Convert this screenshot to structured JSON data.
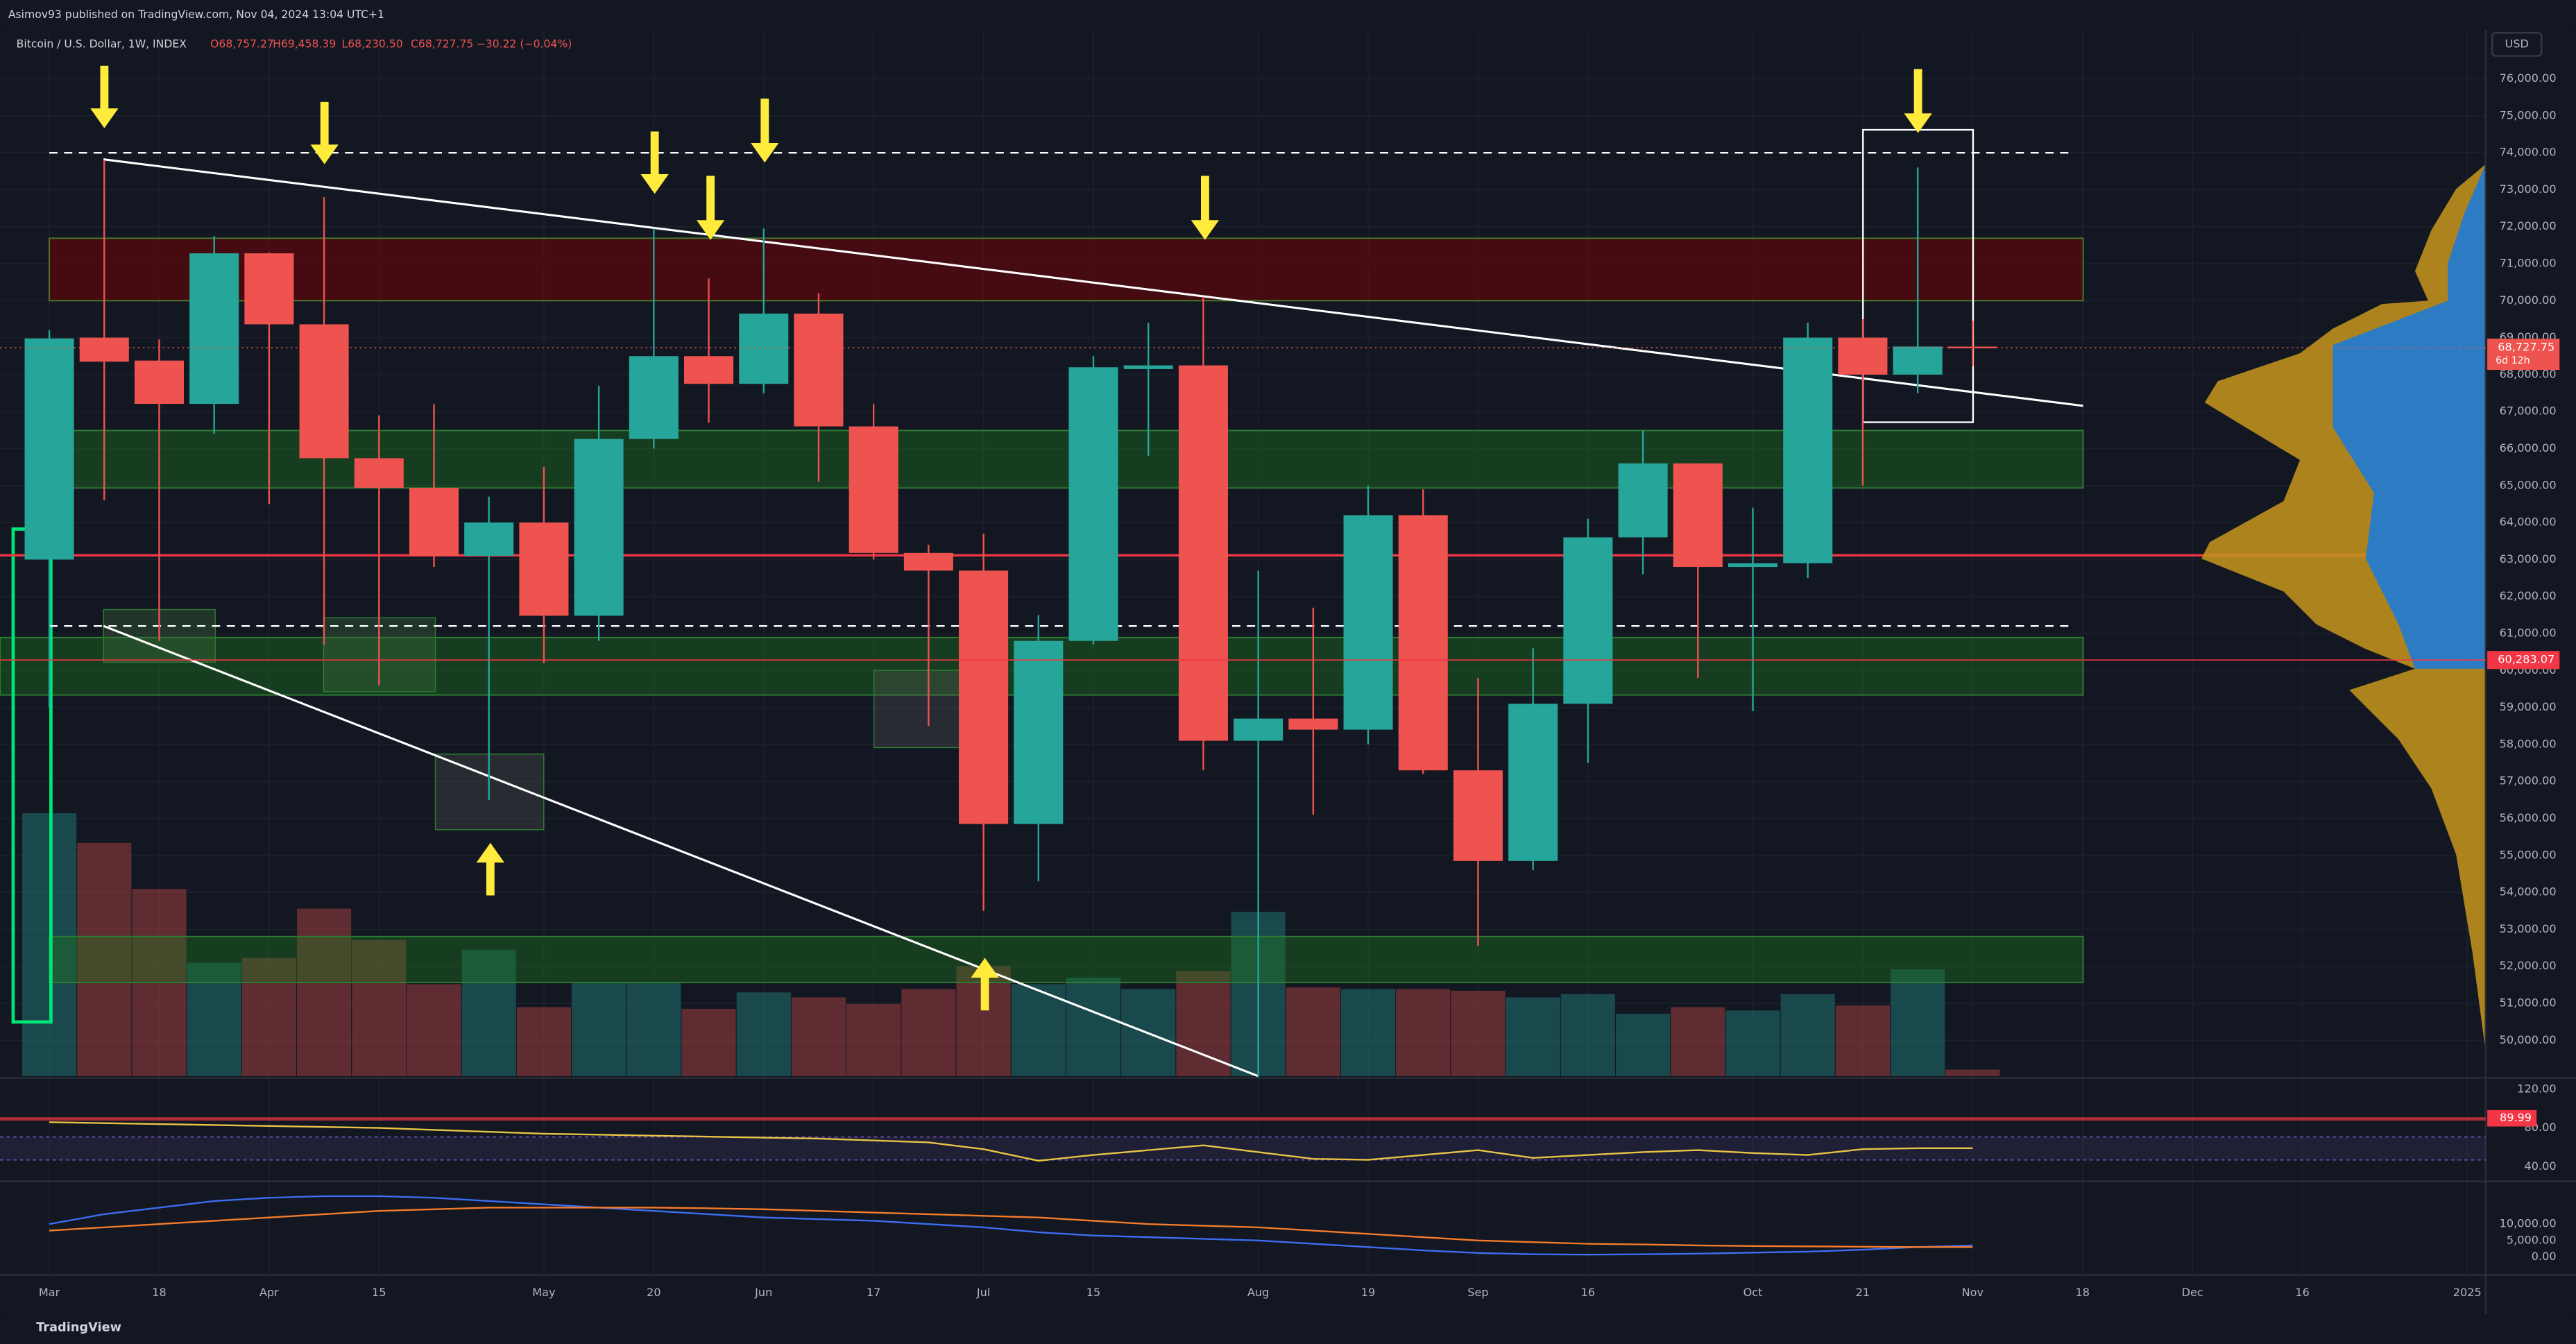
{
  "chart_data": {
    "type": "candlestick",
    "author_line": "Asimov93 published on TradingView.com, Nov 04, 2024 13:04 UTC+1",
    "symbol": "Bitcoin / U.S. Dollar, 1W, INDEX",
    "ohlc_text": [
      "O68,757.27",
      "H69,458.39",
      "L68,230.50",
      "C68,727.75"
    ],
    "change_text": "−30.22 (−0.04%)",
    "currency": "USD",
    "footer": "TradingView",
    "categories": [
      "Mar",
      null,
      "18",
      null,
      "Apr",
      null,
      "15",
      null,
      null,
      "May",
      null,
      "20",
      null,
      "Jun",
      null,
      "17",
      null,
      "Jul",
      null,
      "15",
      null,
      null,
      "Aug",
      null,
      "19",
      null,
      "Sep",
      null,
      "16",
      null,
      null,
      "Oct",
      null,
      "21",
      null,
      "Nov",
      null,
      "18",
      null,
      "Dec",
      null,
      "16",
      null,
      null,
      "2025"
    ],
    "open": [
      63000,
      69000,
      68380,
      67210,
      71280,
      69360,
      65740,
      64940,
      63100,
      64000,
      61480,
      66260,
      68500,
      67750,
      69650,
      66600,
      63180,
      62700,
      55850,
      60800,
      68150,
      68250,
      58100,
      58700,
      58400,
      64200,
      57300,
      54850,
      59100,
      63600,
      65600,
      62800,
      62900,
      69000,
      68000,
      68757.27,
      null,
      null,
      null,
      null,
      null,
      null,
      null,
      null,
      null
    ],
    "high": [
      69200,
      73800,
      68950,
      71750,
      71300,
      72800,
      66900,
      67200,
      64700,
      65500,
      67700,
      71950,
      70600,
      71950,
      70200,
      67200,
      63400,
      63700,
      61500,
      68500,
      69400,
      70100,
      62700,
      61700,
      65000,
      64900,
      59800,
      60600,
      64100,
      66500,
      65600,
      64400,
      69400,
      69500,
      73600,
      69458.39,
      null,
      null,
      null,
      null,
      null,
      null,
      null,
      null,
      null
    ],
    "low": [
      59000,
      64600,
      60800,
      66400,
      64500,
      60700,
      59600,
      62800,
      56500,
      60200,
      60800,
      66000,
      66700,
      67500,
      65100,
      63000,
      58500,
      53500,
      54300,
      60700,
      65800,
      57300,
      49000,
      56100,
      58000,
      57200,
      52550,
      54600,
      57500,
      62600,
      59800,
      58900,
      62500,
      65000,
      67500,
      68230.5,
      null,
      null,
      null,
      null,
      null,
      null,
      null,
      null,
      null
    ],
    "close": [
      68978,
      68350,
      67210,
      71280,
      69360,
      65740,
      64940,
      63100,
      64000,
      61480,
      66260,
      68500,
      67750,
      69650,
      66600,
      63180,
      62700,
      55850,
      60800,
      68200,
      68250,
      58100,
      58700,
      58400,
      64200,
      57300,
      54850,
      59100,
      63600,
      65600,
      62800,
      62900,
      69000,
      68000,
      68760,
      68727.75,
      null,
      null,
      null,
      null,
      null,
      null,
      null,
      null,
      null
    ],
    "volume": [
      160,
      142,
      114,
      69,
      72,
      102,
      83,
      56,
      77,
      42,
      57,
      57,
      41,
      51,
      48,
      44,
      53,
      67,
      56,
      60,
      53,
      64,
      100,
      54,
      53,
      53,
      52,
      48,
      50,
      38,
      42,
      40,
      50,
      43,
      65,
      4,
      null,
      null,
      null,
      null,
      null,
      null,
      null,
      null,
      null
    ],
    "up_color": "#26a69a",
    "down_color": "#ef5350",
    "ylim": [
      49030,
      77330
    ],
    "yticks": [
      {
        "value": 50000,
        "label": "50,000.00"
      },
      {
        "value": 51000,
        "label": "51,000.00"
      },
      {
        "value": 52000,
        "label": "52,000.00"
      },
      {
        "value": 53000,
        "label": "53,000.00"
      },
      {
        "value": 54000,
        "label": "54,000.00"
      },
      {
        "value": 55000,
        "label": "55,000.00"
      },
      {
        "value": 56000,
        "label": "56,000.00"
      },
      {
        "value": 57000,
        "label": "57,000.00"
      },
      {
        "value": 58000,
        "label": "58,000.00"
      },
      {
        "value": 59000,
        "label": "59,000.00"
      },
      {
        "value": 60000,
        "label": "60,000.00"
      },
      {
        "value": 61000,
        "label": "61,000.00"
      },
      {
        "value": 62000,
        "label": "62,000.00"
      },
      {
        "value": 63000,
        "label": "63,000.00"
      },
      {
        "value": 64000,
        "label": "64,000.00"
      },
      {
        "value": 65000,
        "label": "65,000.00"
      },
      {
        "value": 66000,
        "label": "66,000.00"
      },
      {
        "value": 67000,
        "label": "67,000.00"
      },
      {
        "value": 68000,
        "label": "68,000.00"
      },
      {
        "value": 69000,
        "label": "69,000.00"
      },
      {
        "value": 70000,
        "label": "70,000.00"
      },
      {
        "value": 71000,
        "label": "71,000.00"
      },
      {
        "value": 72000,
        "label": "72,000.00"
      },
      {
        "value": 73000,
        "label": "73,000.00"
      },
      {
        "value": 74000,
        "label": "74,000.00"
      },
      {
        "value": 75000,
        "label": "75,000.00"
      },
      {
        "value": 76000,
        "label": "76,000.00"
      }
    ],
    "last_price": {
      "value": 68727.75,
      "label": "68,727.75",
      "countdown": "6d 12h",
      "color": "#ef5350"
    },
    "level_tag": {
      "value": 60283.07,
      "label": "60,283.07",
      "color": "#f23645"
    },
    "rsi": {
      "color": "#e8c547",
      "ylim": [
        26.4,
        130.2
      ],
      "yticks": [
        {
          "value": 40,
          "label": "40.00"
        },
        {
          "value": 80,
          "label": "80.00"
        },
        {
          "value": 120,
          "label": "120.00"
        }
      ],
      "marker": 89.99,
      "marker_color": "#f23645",
      "values": [
        86,
        85,
        84,
        83,
        82,
        81,
        80,
        78,
        76,
        74,
        73,
        72,
        71,
        70,
        69,
        67,
        65,
        58,
        46,
        52,
        57,
        62,
        55,
        48,
        47,
        52,
        57,
        49,
        52,
        55,
        57,
        54,
        52,
        58,
        59,
        59,
        null,
        null,
        null,
        null,
        null,
        null,
        null,
        null,
        null
      ]
    },
    "osc": {
      "ylim": [
        -5000,
        22500
      ],
      "yticks": [
        {
          "value": 0,
          "label": "0.00"
        },
        {
          "value": 5000,
          "label": "5,000.00"
        },
        {
          "value": 10000,
          "label": "10,000.00"
        }
      ],
      "series": [
        {
          "color": "#3d6df2",
          "values": [
            10000,
            13000,
            15000,
            17000,
            18000,
            18500,
            18500,
            18000,
            17000,
            16000,
            15000,
            14000,
            13000,
            12000,
            11500,
            11000,
            10000,
            9000,
            7500,
            6500,
            6000,
            5500,
            5000,
            4000,
            3000,
            2000,
            1200,
            800,
            700,
            800,
            1000,
            1300,
            1600,
            2200,
            3000,
            3500,
            null,
            null,
            null,
            null,
            null,
            null,
            null,
            null,
            null
          ]
        },
        {
          "color": "#f57c2a",
          "values": [
            8000,
            9000,
            10000,
            11000,
            12000,
            13000,
            14000,
            14500,
            15000,
            15000,
            15000,
            15000,
            14800,
            14500,
            14000,
            13500,
            13000,
            12500,
            12000,
            11000,
            10000,
            9500,
            9000,
            8000,
            7000,
            6000,
            5000,
            4500,
            4000,
            3800,
            3500,
            3300,
            3200,
            3100,
            3000,
            3000,
            null,
            null,
            null,
            null,
            null,
            null,
            null,
            null,
            null
          ]
        }
      ]
    }
  }
}
